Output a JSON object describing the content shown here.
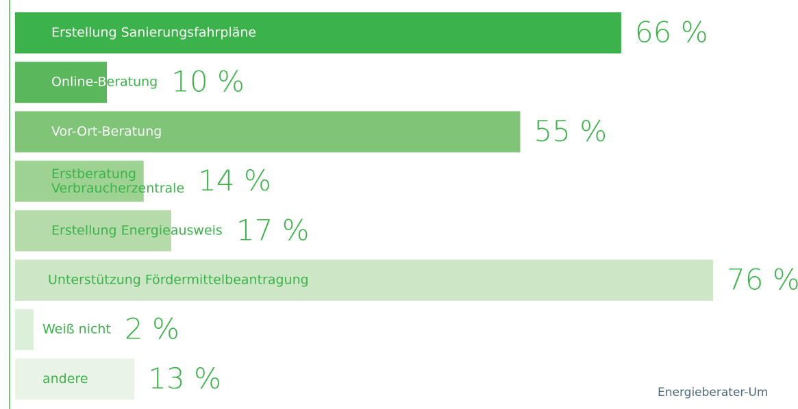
{
  "chart_data": {
    "type": "bar",
    "orientation": "horizontal",
    "categories": [
      "Erstellung Sanierungsfahrpläne",
      "Online-Beratung",
      "Vor-Ort-Beratung",
      "Erstberatung\nVerbraucherzentrale",
      "Erstellung Energieausweis",
      "Unterstützung Fördermittelbeantragung",
      "Weiß nicht",
      "andere"
    ],
    "values": [
      66,
      10,
      55,
      14,
      17,
      76,
      2,
      13
    ],
    "value_labels": [
      "66 %",
      "10 %",
      "55 %",
      "14 %",
      "17 %",
      "76 %",
      "2 %",
      "13 %"
    ],
    "colors": [
      "#3cb34a",
      "#5ab75b",
      "#7fc477",
      "#9dd293",
      "#b5dbaa",
      "#cde6c6",
      "#dcefd8",
      "#e9f4e6"
    ],
    "xlim": [
      0,
      76
    ],
    "note": "Energieberater-Um"
  }
}
